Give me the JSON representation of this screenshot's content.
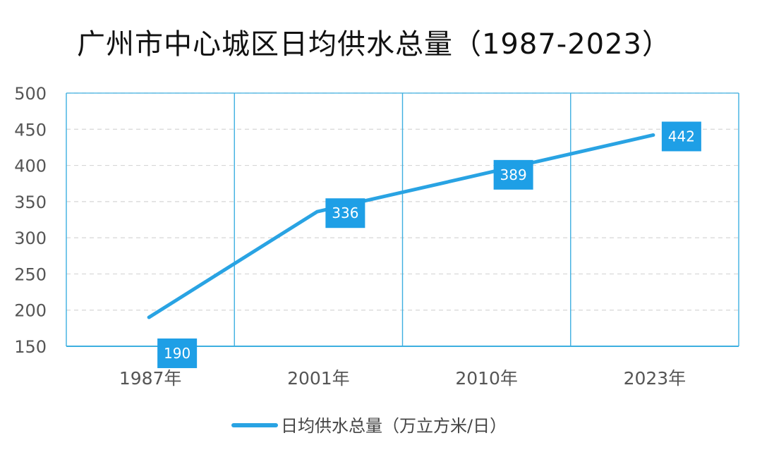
{
  "chart_data": {
    "type": "line",
    "title": "广州市中心城区日均供水总量（1987-2023）",
    "categories": [
      "1987年",
      "2001年",
      "2010年",
      "2023年"
    ],
    "series": [
      {
        "name": "日均供水总量（万立方米/日）",
        "values": [
          190,
          336,
          389,
          442
        ]
      }
    ],
    "ylim": [
      150,
      500
    ],
    "yticks": [
      150,
      200,
      250,
      300,
      350,
      400,
      450,
      500
    ],
    "grid": true,
    "legend_position": "bottom",
    "colors": {
      "line": "#29a3e3",
      "label_box": "#1e9fe6",
      "axis": "#3dafe0",
      "grid": "#d6d6d6"
    }
  }
}
